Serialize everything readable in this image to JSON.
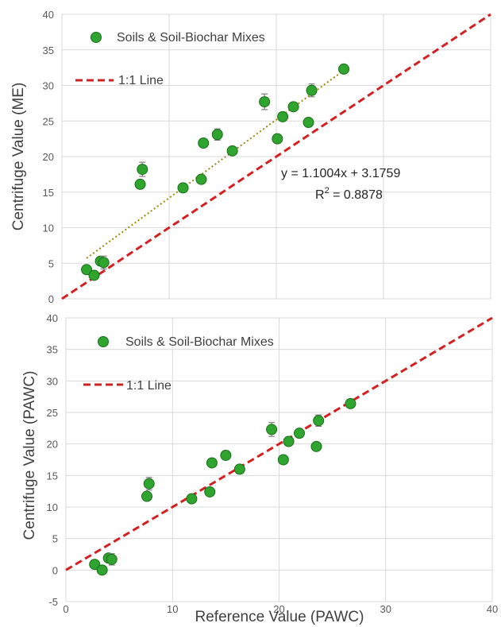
{
  "colors": {
    "point_fill": "#2fa52f",
    "point_stroke": "#1a6e1a",
    "one_to_one_line": "#d42020",
    "trend_line": "#9a8a10",
    "grid": "#d9d9d9",
    "error_bar": "#7f7f7f"
  },
  "chart_data": [
    {
      "type": "scatter",
      "ylabel": "Centrifuge Value (ME)",
      "xlim": [
        0,
        40
      ],
      "ylim": [
        0,
        40
      ],
      "x_tick_step": 10,
      "y_tick_step": 5,
      "y_ticks": [
        "0",
        "5",
        "10",
        "15",
        "20",
        "25",
        "30",
        "35",
        "40"
      ],
      "grid": true,
      "legend": {
        "position": "top-left",
        "entries": [
          {
            "label": "Soils & Soil-Biochar Mixes",
            "marker": "circle"
          },
          {
            "label": "1:1 Line",
            "marker": "dashed-line"
          }
        ]
      },
      "series": [
        {
          "name": "Soils & Soil-Biochar Mixes",
          "points": [
            {
              "x": 2.3,
              "y": 4.1,
              "err": 0.4
            },
            {
              "x": 3.0,
              "y": 3.3,
              "err": 0.3
            },
            {
              "x": 3.6,
              "y": 5.3,
              "err": 0.6
            },
            {
              "x": 3.9,
              "y": 5.1,
              "err": 0.9
            },
            {
              "x": 7.3,
              "y": 16.1,
              "err": 0.4
            },
            {
              "x": 7.5,
              "y": 18.2,
              "err": 1.0
            },
            {
              "x": 11.3,
              "y": 15.6,
              "err": 0.5
            },
            {
              "x": 13.0,
              "y": 16.8,
              "err": 0.6
            },
            {
              "x": 13.2,
              "y": 21.9,
              "err": 0.5
            },
            {
              "x": 14.5,
              "y": 23.1,
              "err": 0.8
            },
            {
              "x": 15.9,
              "y": 20.8,
              "err": 0.4
            },
            {
              "x": 18.9,
              "y": 27.7,
              "err": 1.1
            },
            {
              "x": 20.1,
              "y": 22.5,
              "err": 0.4
            },
            {
              "x": 20.6,
              "y": 25.6,
              "err": 0.5
            },
            {
              "x": 21.6,
              "y": 27.0,
              "err": 0.5
            },
            {
              "x": 23.0,
              "y": 24.8,
              "err": 0.4
            },
            {
              "x": 23.3,
              "y": 29.3,
              "err": 0.9
            },
            {
              "x": 26.3,
              "y": 32.3,
              "err": 0.4
            }
          ]
        }
      ],
      "one_to_one": {
        "label": "1:1 Line"
      },
      "trendline": {
        "slope": 1.1004,
        "intercept": 3.1759,
        "x_range": [
          2.3,
          26.3
        ],
        "equation": "y = 1.1004x + 3.1759",
        "r2_label": "R",
        "r2_sup": "2",
        "r2_value": " = 0.8878"
      }
    },
    {
      "type": "scatter",
      "xlabel": "Reference Value (PAWC)",
      "ylabel": "Centrifuge Value (PAWC)",
      "xlim": [
        0,
        40
      ],
      "ylim": [
        -5,
        40
      ],
      "x_tick_step": 10,
      "y_tick_step": 5,
      "x_ticks": [
        "0",
        "10",
        "20",
        "30",
        "40"
      ],
      "y_ticks": [
        "-5",
        "0",
        "5",
        "10",
        "15",
        "20",
        "25",
        "30",
        "35",
        "40"
      ],
      "grid": true,
      "legend": {
        "position": "top-left",
        "entries": [
          {
            "label": "Soils & Soil-Biochar Mixes",
            "marker": "circle"
          },
          {
            "label": "1:1 Line",
            "marker": "dashed-line"
          }
        ]
      },
      "series": [
        {
          "name": "Soils & Soil-Biochar Mixes",
          "points": [
            {
              "x": 2.7,
              "y": 0.9,
              "err": 0.3
            },
            {
              "x": 3.4,
              "y": 0.0,
              "err": 0.3
            },
            {
              "x": 4.0,
              "y": 1.9,
              "err": 0.6
            },
            {
              "x": 4.3,
              "y": 1.7,
              "err": 0.9
            },
            {
              "x": 7.6,
              "y": 11.7,
              "err": 0.4
            },
            {
              "x": 7.8,
              "y": 13.7,
              "err": 1.0
            },
            {
              "x": 11.8,
              "y": 11.3,
              "err": 0.5
            },
            {
              "x": 13.5,
              "y": 12.4,
              "err": 0.6
            },
            {
              "x": 13.7,
              "y": 17.0,
              "err": 0.5
            },
            {
              "x": 15.0,
              "y": 18.2,
              "err": 0.7
            },
            {
              "x": 16.3,
              "y": 16.0,
              "err": 0.4
            },
            {
              "x": 19.3,
              "y": 22.3,
              "err": 1.1
            },
            {
              "x": 20.4,
              "y": 17.5,
              "err": 0.4
            },
            {
              "x": 20.9,
              "y": 20.4,
              "err": 0.5
            },
            {
              "x": 21.9,
              "y": 21.7,
              "err": 0.5
            },
            {
              "x": 23.5,
              "y": 19.6,
              "err": 0.4
            },
            {
              "x": 23.7,
              "y": 23.7,
              "err": 0.9
            },
            {
              "x": 26.7,
              "y": 26.4,
              "err": 0.4
            }
          ]
        }
      ],
      "one_to_one": {
        "label": "1:1 Line"
      }
    }
  ]
}
